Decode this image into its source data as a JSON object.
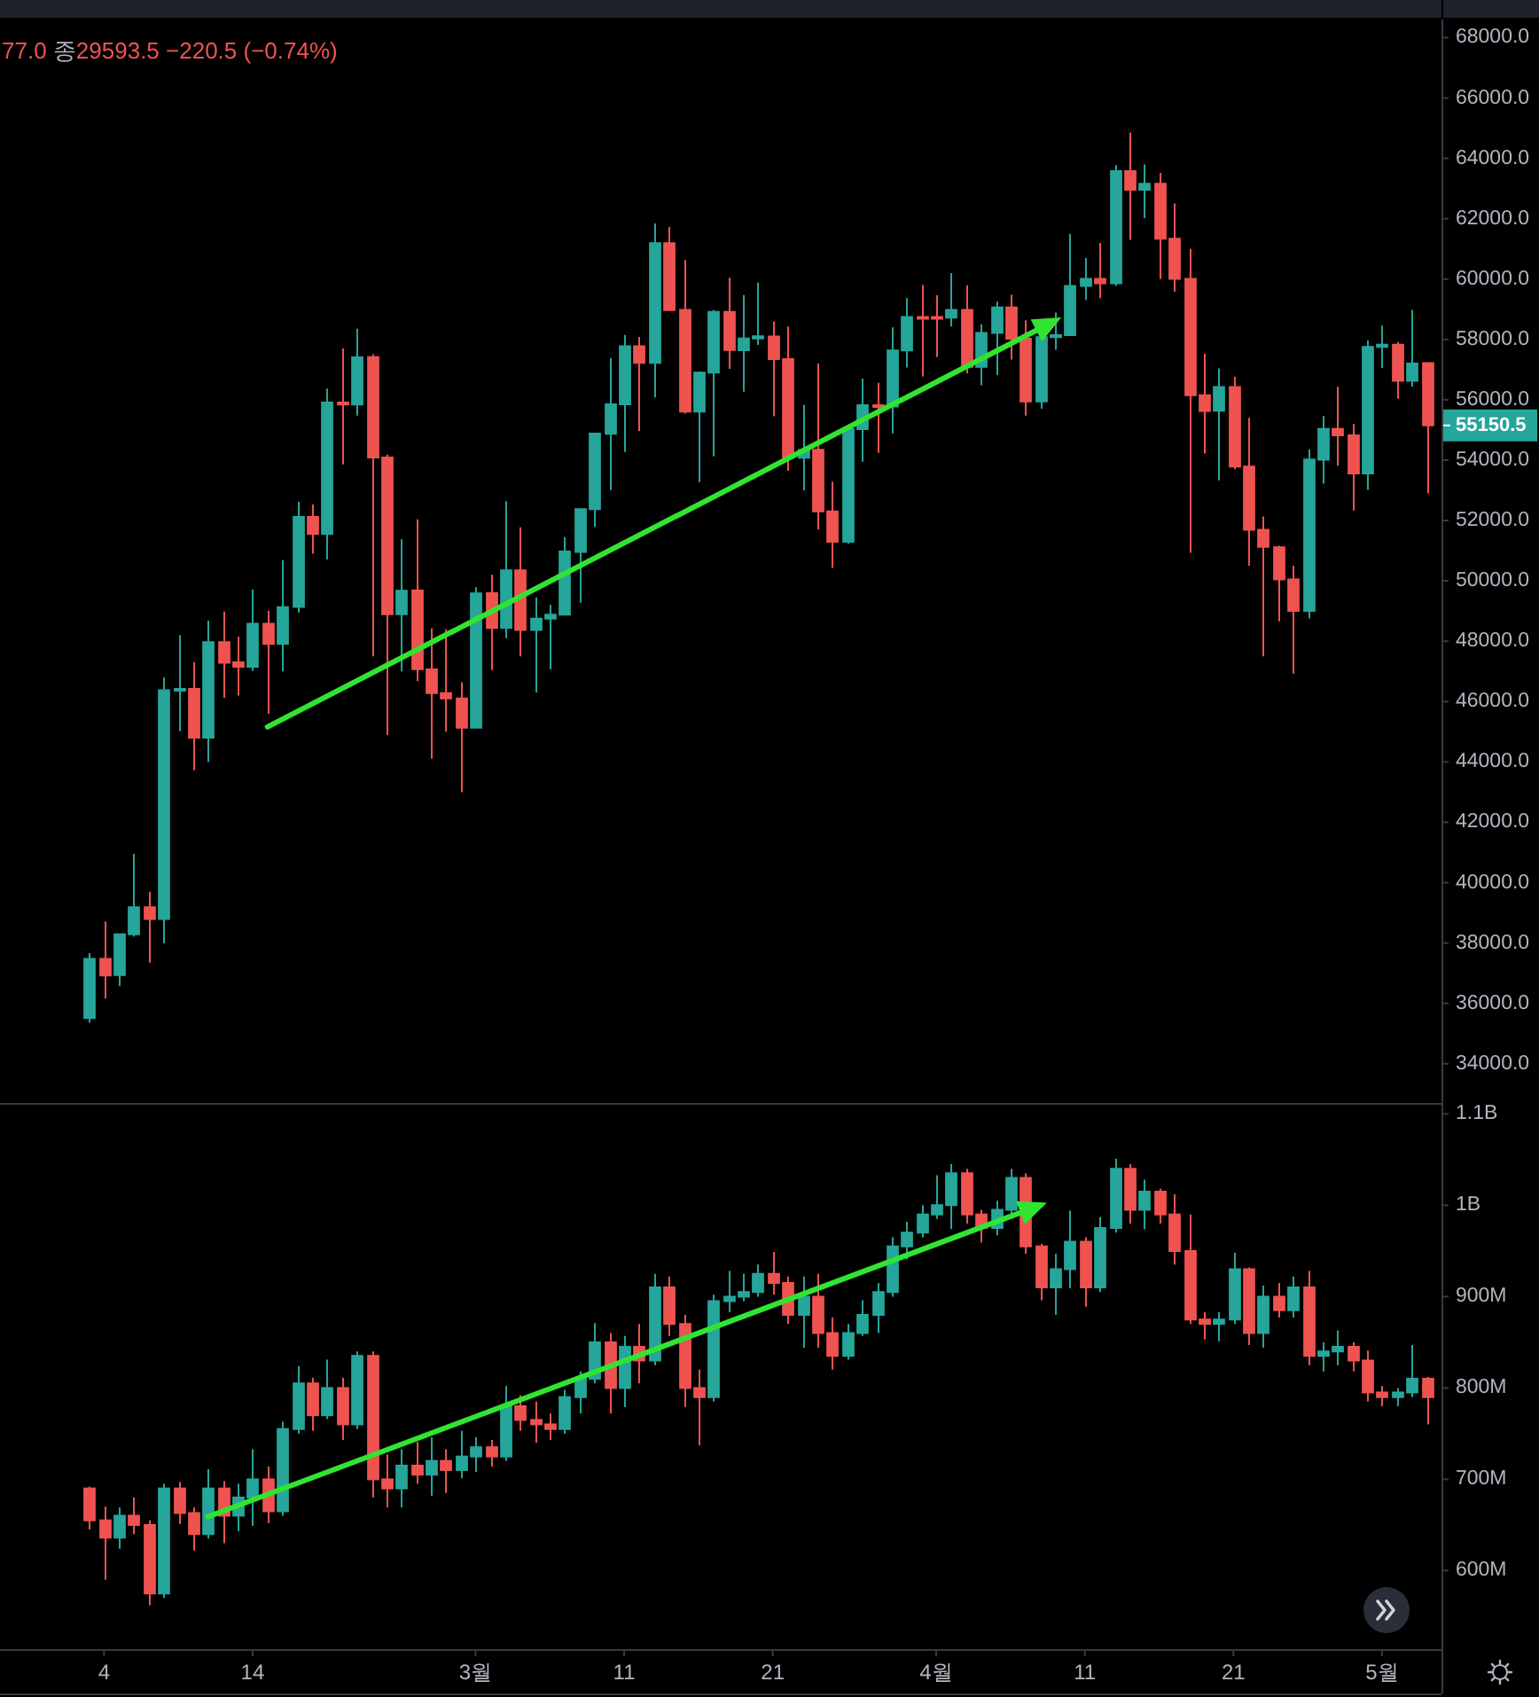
{
  "chart_data": [
    {
      "type": "candlestick",
      "x": [
        "--02-03",
        "--02-04",
        "--02-05",
        "--02-06",
        "--02-07",
        "--02-08",
        "--02-09",
        "--02-10",
        "--02-11",
        "--02-12",
        "--02-13",
        "--02-14",
        "--02-15",
        "--02-16",
        "--02-17",
        "--02-18",
        "--02-19",
        "--02-20",
        "--02-21",
        "--02-22",
        "--02-23",
        "--02-24",
        "--02-25",
        "--02-26",
        "--02-27",
        "--02-28",
        "--03-01",
        "--03-02",
        "--03-03",
        "--03-04",
        "--03-05",
        "--03-06",
        "--03-07",
        "--03-08",
        "--03-09",
        "--03-10",
        "--03-11",
        "--03-12",
        "--03-13",
        "--03-14",
        "--03-15",
        "--03-16",
        "--03-17",
        "--03-18",
        "--03-19",
        "--03-20",
        "--03-21",
        "--03-22",
        "--03-23",
        "--03-24",
        "--03-25",
        "--03-26",
        "--03-27",
        "--03-28",
        "--03-29",
        "--03-30",
        "--03-31",
        "--04-01",
        "--04-02",
        "--04-03",
        "--04-04",
        "--04-05",
        "--04-06",
        "--04-07",
        "--04-08",
        "--04-09",
        "--04-10",
        "--04-11",
        "--04-12",
        "--04-13",
        "--04-14",
        "--04-15",
        "--04-16",
        "--04-17",
        "--04-18",
        "--04-19",
        "--04-20",
        "--04-21",
        "--04-22",
        "--04-23",
        "--04-24",
        "--04-25",
        "--04-26",
        "--04-27",
        "--04-28",
        "--04-29",
        "--04-30",
        "--05-01",
        "--05-02",
        "--05-03",
        "--05-04"
      ],
      "ohlc": [
        [
          35510,
          37662,
          35362,
          37472
        ],
        [
          37472,
          38708,
          36161,
          36926
        ],
        [
          36936,
          38310,
          36570,
          38290
        ],
        [
          38289,
          40955,
          38215,
          39186
        ],
        [
          39182,
          39700,
          37351,
          38795
        ],
        [
          38795,
          46794,
          37988,
          46374
        ],
        [
          46374,
          48200,
          45020,
          46420
        ],
        [
          46420,
          47311,
          43727,
          44807
        ],
        [
          44807,
          48678,
          43994,
          47969
        ],
        [
          47968,
          48985,
          46126,
          47287
        ],
        [
          47299,
          48150,
          46202,
          47153
        ],
        [
          47156,
          49707,
          47014,
          48577
        ],
        [
          48580,
          49010,
          45600,
          47911
        ],
        [
          47911,
          50689,
          47003,
          49133
        ],
        [
          49134,
          52619,
          48947,
          52119
        ],
        [
          52119,
          52530,
          50901,
          51552
        ],
        [
          51552,
          56368,
          50710,
          55906
        ],
        [
          55906,
          57700,
          53863,
          55842
        ],
        [
          55842,
          58352,
          55477,
          57409
        ],
        [
          57413,
          57508,
          47500,
          54088
        ],
        [
          54087,
          54183,
          44892,
          48892
        ],
        [
          48891,
          51374,
          47003,
          49676
        ],
        [
          49677,
          52041,
          46674,
          47074
        ],
        [
          47063,
          48424,
          44106,
          46277
        ],
        [
          46278,
          48395,
          45000,
          46107
        ],
        [
          46104,
          46638,
          43000,
          45135
        ],
        [
          45134,
          49790,
          45115,
          49587
        ],
        [
          49595,
          50200,
          47047,
          48440
        ],
        [
          48436,
          52640,
          48100,
          50349
        ],
        [
          50349,
          51773,
          47500,
          48374
        ],
        [
          48374,
          49448,
          46300,
          48751
        ],
        [
          48746,
          49200,
          47070,
          48882
        ],
        [
          48882,
          51450,
          48882,
          50971
        ],
        [
          50959,
          52402,
          49274,
          52375
        ],
        [
          52376,
          54895,
          51789,
          54884
        ],
        [
          54875,
          57387,
          53005,
          55851
        ],
        [
          55851,
          58150,
          54272,
          57773
        ],
        [
          57773,
          58081,
          54962,
          57221
        ],
        [
          57221,
          61844,
          56078,
          61188
        ],
        [
          61188,
          61724,
          58966,
          58968
        ],
        [
          58976,
          60633,
          55543,
          55605
        ],
        [
          55605,
          56938,
          53271,
          56900
        ],
        [
          56900,
          58978,
          54124,
          58912
        ],
        [
          58912,
          60040,
          57023,
          57648
        ],
        [
          57641,
          59468,
          56270,
          58030
        ],
        [
          58030,
          59880,
          57820,
          58102
        ],
        [
          58100,
          58589,
          55450,
          57351
        ],
        [
          57351,
          58430,
          53650,
          54083
        ],
        [
          54083,
          55830,
          53000,
          54340
        ],
        [
          54342,
          57200,
          51700,
          52303
        ],
        [
          52303,
          53287,
          50427,
          51293
        ],
        [
          51293,
          55073,
          51229,
          55025
        ],
        [
          55025,
          56700,
          53950,
          55817
        ],
        [
          55817,
          56559,
          54242,
          55777
        ],
        [
          55778,
          58400,
          54891,
          57635
        ],
        [
          57635,
          59368,
          57071,
          58746
        ],
        [
          58746,
          59800,
          56769,
          58740
        ],
        [
          58740,
          59462,
          57413,
          58720
        ],
        [
          58720,
          60200,
          58428,
          58981
        ],
        [
          58981,
          59791,
          56880,
          57094
        ],
        [
          57094,
          58500,
          56478,
          58216
        ],
        [
          58216,
          59250,
          56817,
          59058
        ],
        [
          59058,
          59475,
          57333,
          58021
        ],
        [
          58021,
          58630,
          55473,
          55948
        ],
        [
          55948,
          58153,
          55700,
          58077
        ],
        [
          58077,
          58894,
          57654,
          58142
        ],
        [
          58142,
          61500,
          58142,
          59770
        ],
        [
          59770,
          60700,
          59300,
          60007
        ],
        [
          60007,
          61200,
          59369,
          59860
        ],
        [
          59860,
          63777,
          59770,
          63575
        ],
        [
          63576,
          64854,
          61301,
          62959
        ],
        [
          62959,
          63800,
          62020,
          63159
        ],
        [
          63158,
          63520,
          60000,
          61334
        ],
        [
          61334,
          62506,
          59580,
          60006
        ],
        [
          60006,
          61000,
          50931,
          56150
        ],
        [
          56150,
          57526,
          54221,
          55633
        ],
        [
          55634,
          57038,
          53329,
          56425
        ],
        [
          56425,
          56757,
          53695,
          53787
        ],
        [
          53788,
          55400,
          50500,
          51691
        ],
        [
          51691,
          52131,
          47500,
          51125
        ],
        [
          51111,
          51166,
          48658,
          50047
        ],
        [
          50047,
          50500,
          46930,
          49004
        ],
        [
          49004,
          54356,
          48753,
          54022
        ],
        [
          54014,
          55460,
          53223,
          55034
        ],
        [
          55033,
          56428,
          53813,
          54825
        ],
        [
          54825,
          55195,
          52330,
          53555
        ],
        [
          53555,
          57963,
          53013,
          57750
        ],
        [
          57750,
          58458,
          57052,
          57828
        ],
        [
          57829,
          57911,
          56035,
          56631
        ],
        [
          56631,
          58981,
          56435,
          57200
        ],
        [
          57214,
          57214,
          52900,
          55150.5
        ]
      ],
      "colors": [
        "#26a69a",
        "#ef5350",
        "#26a69a",
        "#26a69a",
        "#ef5350",
        "#26a69a",
        "#26a69a",
        "#ef5350",
        "#26a69a",
        "#ef5350",
        "#ef5350",
        "#26a69a",
        "#ef5350",
        "#26a69a",
        "#26a69a",
        "#ef5350",
        "#26a69a",
        "#ef5350",
        "#26a69a",
        "#ef5350",
        "#ef5350",
        "#26a69a",
        "#ef5350",
        "#ef5350",
        "#ef5350",
        "#ef5350",
        "#26a69a",
        "#ef5350",
        "#26a69a",
        "#ef5350",
        "#26a69a",
        "#26a69a",
        "#26a69a",
        "#26a69a",
        "#26a69a",
        "#26a69a",
        "#26a69a",
        "#ef5350",
        "#26a69a",
        "#ef5350",
        "#ef5350",
        "#26a69a",
        "#26a69a",
        "#ef5350",
        "#26a69a",
        "#26a69a",
        "#ef5350",
        "#ef5350",
        "#26a69a",
        "#ef5350",
        "#ef5350",
        "#26a69a",
        "#26a69a",
        "#ef5350",
        "#26a69a",
        "#26a69a",
        "#ef5350",
        "#ef5350",
        "#26a69a",
        "#ef5350",
        "#26a69a",
        "#26a69a",
        "#ef5350",
        "#ef5350",
        "#26a69a",
        "#26a69a",
        "#26a69a",
        "#26a69a",
        "#ef5350",
        "#26a69a",
        "#ef5350",
        "#26a69a",
        "#ef5350",
        "#ef5350",
        "#ef5350",
        "#ef5350",
        "#26a69a",
        "#ef5350",
        "#ef5350",
        "#ef5350",
        "#ef5350",
        "#ef5350",
        "#26a69a",
        "#26a69a",
        "#ef5350",
        "#ef5350",
        "#26a69a",
        "#26a69a",
        "#ef5350",
        "#26a69a",
        "#ef5350"
      ],
      "series": [
        {
          "type": "line",
          "x": [
            "--02-15",
            "--04-09"
          ],
          "values": [
            45160,
            58620
          ],
          "color": "#32e432"
        }
      ],
      "xlim": [
        "--01-28",
        "--05-05"
      ],
      "ylim": [
        32700,
        68600
      ],
      "yticks": [
        {
          "value": 34000,
          "label": "34000.0"
        },
        {
          "value": 36000,
          "label": "36000.0"
        },
        {
          "value": 38000,
          "label": "38000.0"
        },
        {
          "value": 40000,
          "label": "40000.0"
        },
        {
          "value": 42000,
          "label": "42000.0"
        },
        {
          "value": 44000,
          "label": "44000.0"
        },
        {
          "value": 46000,
          "label": "46000.0"
        },
        {
          "value": 48000,
          "label": "48000.0"
        },
        {
          "value": 50000,
          "label": "50000.0"
        },
        {
          "value": 52000,
          "label": "52000.0"
        },
        {
          "value": 54000,
          "label": "54000.0"
        },
        {
          "value": 56000,
          "label": "56000.0"
        },
        {
          "value": 58000,
          "label": "58000.0"
        },
        {
          "value": 60000,
          "label": "60000.0"
        },
        {
          "value": 62000,
          "label": "62000.0"
        },
        {
          "value": 64000,
          "label": "64000.0"
        },
        {
          "value": 66000,
          "label": "66000.0"
        },
        {
          "value": 68000,
          "label": "68000.0"
        }
      ],
      "tick_labels": "y",
      "annotations": [
        "77.0 종29593.5 −220.5 (−0.74%)",
        "55150.5"
      ]
    },
    {
      "type": "candlestick",
      "x": [
        "--02-03",
        "--02-04",
        "--02-05",
        "--02-06",
        "--02-07",
        "--02-08",
        "--02-09",
        "--02-10",
        "--02-11",
        "--02-12",
        "--02-13",
        "--02-14",
        "--02-15",
        "--02-16",
        "--02-17",
        "--02-18",
        "--02-19",
        "--02-20",
        "--02-21",
        "--02-22",
        "--02-23",
        "--02-24",
        "--02-25",
        "--02-26",
        "--02-27",
        "--02-28",
        "--03-01",
        "--03-02",
        "--03-03",
        "--03-04",
        "--03-05",
        "--03-06",
        "--03-07",
        "--03-08",
        "--03-09",
        "--03-10",
        "--03-11",
        "--03-12",
        "--03-13",
        "--03-14",
        "--03-15",
        "--03-16",
        "--03-17",
        "--03-18",
        "--03-19",
        "--03-20",
        "--03-21",
        "--03-22",
        "--03-23",
        "--03-24",
        "--03-25",
        "--03-26",
        "--03-27",
        "--03-28",
        "--03-29",
        "--03-30",
        "--03-31",
        "--04-01",
        "--04-02",
        "--04-03",
        "--04-04",
        "--04-05",
        "--04-06",
        "--04-07",
        "--04-08",
        "--04-09",
        "--04-10",
        "--04-11",
        "--04-12",
        "--04-13",
        "--04-14",
        "--04-15",
        "--04-16",
        "--04-17",
        "--04-18",
        "--04-19",
        "--04-20",
        "--04-21",
        "--04-22",
        "--04-23",
        "--04-24",
        "--04-25",
        "--04-26",
        "--04-27",
        "--04-28",
        "--04-29",
        "--04-30",
        "--05-01",
        "--05-02",
        "--05-03",
        "--05-04"
      ],
      "ohlc": [
        [
          690000000,
          692000000,
          645000000,
          655000000
        ],
        [
          655000000,
          670000000,
          590000000,
          636000000
        ],
        [
          636000000,
          669000000,
          624000000,
          660000000
        ],
        [
          660000000,
          680000000,
          640000000,
          650000000
        ],
        [
          650000000,
          655000000,
          562000000,
          575000000
        ],
        [
          575000000,
          695000000,
          570000000,
          690000000
        ],
        [
          690000000,
          697000000,
          651000000,
          663000000
        ],
        [
          663000000,
          669000000,
          622000000,
          640000000
        ],
        [
          640000000,
          711000000,
          635000000,
          690000000
        ],
        [
          690000000,
          698000000,
          630000000,
          660000000
        ],
        [
          660000000,
          695000000,
          643000000,
          680000000
        ],
        [
          680000000,
          733000000,
          649000000,
          700000000
        ],
        [
          700000000,
          714000000,
          652000000,
          665000000
        ],
        [
          665000000,
          763000000,
          660000000,
          755000000
        ],
        [
          755000000,
          824000000,
          750000000,
          805000000
        ],
        [
          805000000,
          811000000,
          753000000,
          770000000
        ],
        [
          770000000,
          831000000,
          766000000,
          800000000
        ],
        [
          800000000,
          811000000,
          743000000,
          760000000
        ],
        [
          760000000,
          840000000,
          755000000,
          835000000
        ],
        [
          835000000,
          840000000,
          680000000,
          700000000
        ],
        [
          700000000,
          727000000,
          669000000,
          690000000
        ],
        [
          690000000,
          733000000,
          669000000,
          715000000
        ],
        [
          715000000,
          741000000,
          695000000,
          705000000
        ],
        [
          705000000,
          746000000,
          682000000,
          720000000
        ],
        [
          720000000,
          733000000,
          685000000,
          710000000
        ],
        [
          710000000,
          753000000,
          701000000,
          725000000
        ],
        [
          725000000,
          746000000,
          708000000,
          735000000
        ],
        [
          735000000,
          743000000,
          714000000,
          725000000
        ],
        [
          725000000,
          802000000,
          720000000,
          780000000
        ],
        [
          780000000,
          792000000,
          753000000,
          765000000
        ],
        [
          765000000,
          785000000,
          740000000,
          760000000
        ],
        [
          760000000,
          772000000,
          743000000,
          755000000
        ],
        [
          755000000,
          798000000,
          750000000,
          790000000
        ],
        [
          790000000,
          818000000,
          772000000,
          810000000
        ],
        [
          810000000,
          871000000,
          805000000,
          850000000
        ],
        [
          850000000,
          860000000,
          772000000,
          800000000
        ],
        [
          800000000,
          857000000,
          779000000,
          845000000
        ],
        [
          845000000,
          870000000,
          805000000,
          830000000
        ],
        [
          830000000,
          925000000,
          825000000,
          910000000
        ],
        [
          910000000,
          922000000,
          857000000,
          870000000
        ],
        [
          870000000,
          880000000,
          779000000,
          800000000
        ],
        [
          800000000,
          820000000,
          737000000,
          790000000
        ],
        [
          790000000,
          902000000,
          785000000,
          895000000
        ],
        [
          895000000,
          928000000,
          883000000,
          900000000
        ],
        [
          900000000,
          925000000,
          895000000,
          905000000
        ],
        [
          905000000,
          935000000,
          900000000,
          925000000
        ],
        [
          925000000,
          949000000,
          902000000,
          915000000
        ],
        [
          915000000,
          922000000,
          870000000,
          880000000
        ],
        [
          880000000,
          922000000,
          844000000,
          900000000
        ],
        [
          900000000,
          925000000,
          844000000,
          860000000
        ],
        [
          860000000,
          877000000,
          820000000,
          835000000
        ],
        [
          835000000,
          870000000,
          831000000,
          860000000
        ],
        [
          860000000,
          896000000,
          857000000,
          880000000
        ],
        [
          880000000,
          915000000,
          860000000,
          905000000
        ],
        [
          905000000,
          965000000,
          900000000,
          955000000
        ],
        [
          955000000,
          982000000,
          941000000,
          970000000
        ],
        [
          970000000,
          1000000000,
          965000000,
          990000000
        ],
        [
          990000000,
          1033000000,
          985000000,
          1000000000
        ],
        [
          1000000000,
          1045000000,
          974000000,
          1035000000
        ],
        [
          1035000000,
          1040000000,
          980000000,
          990000000
        ],
        [
          990000000,
          995000000,
          959000000,
          975000000
        ],
        [
          975000000,
          1005000000,
          967000000,
          995000000
        ],
        [
          995000000,
          1040000000,
          985000000,
          1030000000
        ],
        [
          1030000000,
          1035000000,
          947000000,
          955000000
        ],
        [
          955000000,
          958000000,
          896000000,
          910000000
        ],
        [
          910000000,
          947000000,
          880000000,
          930000000
        ],
        [
          930000000,
          994000000,
          909000000,
          960000000
        ],
        [
          960000000,
          965000000,
          889000000,
          910000000
        ],
        [
          910000000,
          987000000,
          905000000,
          975000000
        ],
        [
          975000000,
          1051000000,
          970000000,
          1040000000
        ],
        [
          1040000000,
          1045000000,
          980000000,
          995000000
        ],
        [
          995000000,
          1028000000,
          974000000,
          1015000000
        ],
        [
          1015000000,
          1018000000,
          980000000,
          990000000
        ],
        [
          990000000,
          1012000000,
          935000000,
          950000000
        ],
        [
          950000000,
          990000000,
          870000000,
          875000000
        ],
        [
          875000000,
          883000000,
          853000000,
          870000000
        ],
        [
          870000000,
          883000000,
          851000000,
          875000000
        ],
        [
          875000000,
          948000000,
          870000000,
          930000000
        ],
        [
          930000000,
          932000000,
          847000000,
          860000000
        ],
        [
          860000000,
          912000000,
          844000000,
          900000000
        ],
        [
          900000000,
          915000000,
          877000000,
          885000000
        ],
        [
          885000000,
          922000000,
          877000000,
          910000000
        ],
        [
          910000000,
          928000000,
          825000000,
          835000000
        ],
        [
          835000000,
          850000000,
          818000000,
          840000000
        ],
        [
          840000000,
          863000000,
          825000000,
          845000000
        ],
        [
          845000000,
          850000000,
          818000000,
          830000000
        ],
        [
          830000000,
          841000000,
          785000000,
          795000000
        ],
        [
          795000000,
          802000000,
          780000000,
          790000000
        ],
        [
          790000000,
          800000000,
          780000000,
          795000000
        ],
        [
          795000000,
          847000000,
          790000000,
          810000000
        ],
        [
          810000000,
          812000000,
          760000000,
          790000000
        ]
      ],
      "colors": [
        "#ef5350",
        "#ef5350",
        "#26a69a",
        "#ef5350",
        "#ef5350",
        "#26a69a",
        "#ef5350",
        "#ef5350",
        "#26a69a",
        "#ef5350",
        "#26a69a",
        "#26a69a",
        "#ef5350",
        "#26a69a",
        "#26a69a",
        "#ef5350",
        "#26a69a",
        "#ef5350",
        "#26a69a",
        "#ef5350",
        "#ef5350",
        "#26a69a",
        "#ef5350",
        "#26a69a",
        "#ef5350",
        "#26a69a",
        "#26a69a",
        "#ef5350",
        "#26a69a",
        "#ef5350",
        "#ef5350",
        "#ef5350",
        "#26a69a",
        "#26a69a",
        "#26a69a",
        "#ef5350",
        "#26a69a",
        "#ef5350",
        "#26a69a",
        "#ef5350",
        "#ef5350",
        "#ef5350",
        "#26a69a",
        "#26a69a",
        "#26a69a",
        "#26a69a",
        "#ef5350",
        "#ef5350",
        "#26a69a",
        "#ef5350",
        "#ef5350",
        "#26a69a",
        "#26a69a",
        "#26a69a",
        "#26a69a",
        "#26a69a",
        "#26a69a",
        "#26a69a",
        "#26a69a",
        "#ef5350",
        "#ef5350",
        "#26a69a",
        "#26a69a",
        "#ef5350",
        "#ef5350",
        "#26a69a",
        "#26a69a",
        "#ef5350",
        "#26a69a",
        "#26a69a",
        "#ef5350",
        "#26a69a",
        "#ef5350",
        "#ef5350",
        "#ef5350",
        "#ef5350",
        "#26a69a",
        "#26a69a",
        "#ef5350",
        "#26a69a",
        "#ef5350",
        "#26a69a",
        "#ef5350",
        "#26a69a",
        "#26a69a",
        "#ef5350",
        "#ef5350",
        "#ef5350",
        "#26a69a",
        "#26a69a",
        "#ef5350"
      ],
      "series": [
        {
          "type": "line",
          "x": [
            "--02-11",
            "--04-08"
          ],
          "values": [
            659000000,
            1000000000
          ],
          "color": "#32e432"
        }
      ],
      "xlim": [
        "--01-28",
        "--05-05"
      ],
      "xticks": [
        {
          "value": "--02-04",
          "label": "4"
        },
        {
          "value": "--02-14",
          "label": "14"
        },
        {
          "value": "--03-01",
          "label": "3월"
        },
        {
          "value": "--03-11",
          "label": "11"
        },
        {
          "value": "--03-21",
          "label": "21"
        },
        {
          "value": "--04-01",
          "label": "4월"
        },
        {
          "value": "--04-11",
          "label": "11"
        },
        {
          "value": "--04-21",
          "label": "21"
        },
        {
          "value": "--05-01",
          "label": "5월"
        }
      ],
      "ylim": [
        514000000,
        1112000000
      ],
      "yticks": [
        {
          "value": 600000000,
          "label": "600M"
        },
        {
          "value": 700000000,
          "label": "700M"
        },
        {
          "value": 800000000,
          "label": "800M"
        },
        {
          "value": 900000000,
          "label": "900M"
        },
        {
          "value": 1000000000,
          "label": "1B"
        },
        {
          "value": 1100000000,
          "label": "1.1B"
        }
      ]
    }
  ]
}
